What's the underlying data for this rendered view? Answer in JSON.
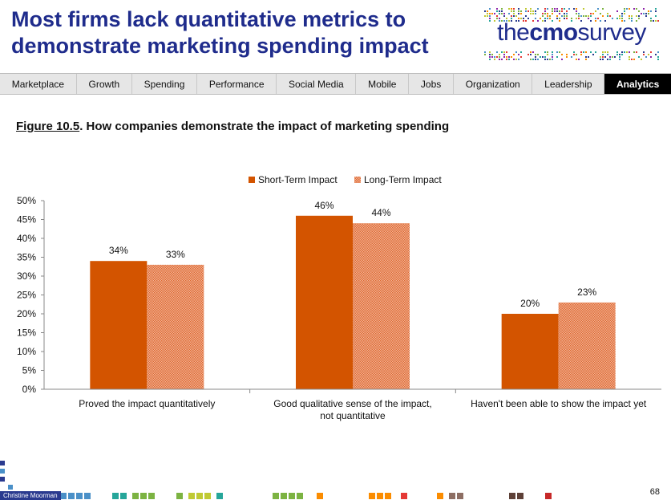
{
  "header": {
    "title": "Most firms lack quantitative metrics to demonstrate marketing spending impact"
  },
  "logo": {
    "prefix": "the",
    "middle": "cmo",
    "suffix": "survey"
  },
  "nav": {
    "items": [
      {
        "label": "Marketplace"
      },
      {
        "label": "Growth"
      },
      {
        "label": "Spending"
      },
      {
        "label": "Performance"
      },
      {
        "label": "Social Media"
      },
      {
        "label": "Mobile"
      },
      {
        "label": "Jobs"
      },
      {
        "label": "Organization"
      },
      {
        "label": "Leadership"
      },
      {
        "label": "Analytics",
        "active": true
      }
    ]
  },
  "figure": {
    "number": "Figure 10.5",
    "title": ". How companies demonstrate the impact of marketing spending"
  },
  "chart_data": {
    "type": "bar",
    "categories": [
      [
        "Proved the impact quantitatively"
      ],
      [
        "Good qualitative sense of the impact,",
        "not quantitative"
      ],
      [
        "Haven't been able to show the impact yet"
      ]
    ],
    "series": [
      {
        "name": "Short-Term Impact",
        "values": [
          34,
          46,
          20
        ],
        "labels": [
          "34%",
          "46%",
          "20%"
        ],
        "color": "#d35400",
        "style": "solid"
      },
      {
        "name": "Long-Term Impact",
        "values": [
          33,
          44,
          23
        ],
        "labels": [
          "33%",
          "44%",
          "23%"
        ],
        "color": "#e8855a",
        "style": "hatched"
      }
    ],
    "yticks": [
      "0%",
      "5%",
      "10%",
      "15%",
      "20%",
      "25%",
      "30%",
      "35%",
      "40%",
      "45%",
      "50%"
    ],
    "ylim": [
      0,
      50
    ],
    "legend_position": "top-center",
    "grid": false
  },
  "footer": {
    "author": "Christine Moorman",
    "page": "68"
  },
  "colors": {
    "brand_blue": "#1f2c8c",
    "short_term": "#d35400",
    "long_term": "#e8855a"
  }
}
